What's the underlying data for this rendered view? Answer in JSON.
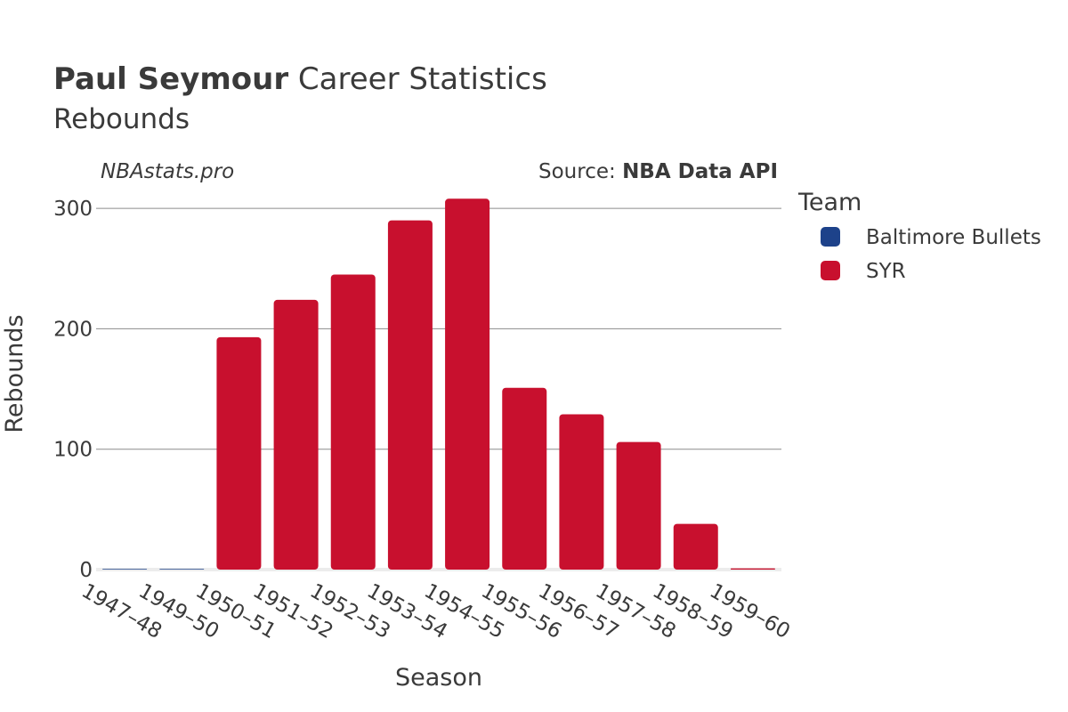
{
  "header": {
    "title_bold": "Paul Seymour",
    "title_rest": " Career Statistics",
    "subtitle": "Rebounds"
  },
  "brand": "NBAstats.pro",
  "source": {
    "prefix": "Source: ",
    "name": "NBA Data API"
  },
  "legend": {
    "title": "Team",
    "items": [
      {
        "label": "Baltimore Bullets",
        "color": "#1d428a"
      },
      {
        "label": "SYR",
        "color": "#c8102e"
      }
    ]
  },
  "chart_data": {
    "type": "bar",
    "title": "Paul Seymour Career Statistics",
    "subtitle": "Rebounds",
    "xlabel": "Season",
    "ylabel": "Rebounds",
    "ylim": [
      0,
      320
    ],
    "yticks": [
      0,
      100,
      200,
      300
    ],
    "grid": true,
    "legend_position": "right",
    "categories": [
      "1947–48",
      "1949–50",
      "1950–51",
      "1951–52",
      "1952–53",
      "1953–54",
      "1954–55",
      "1955–56",
      "1956–57",
      "1957–58",
      "1958–59",
      "1959–60"
    ],
    "series": [
      {
        "name": "Baltimore Bullets",
        "color": "#1d428a",
        "values": [
          0,
          0,
          null,
          null,
          null,
          null,
          null,
          null,
          null,
          null,
          null,
          null
        ]
      },
      {
        "name": "SYR",
        "color": "#c8102e",
        "values": [
          null,
          null,
          193,
          224,
          245,
          290,
          308,
          151,
          129,
          106,
          38,
          1
        ]
      }
    ]
  }
}
